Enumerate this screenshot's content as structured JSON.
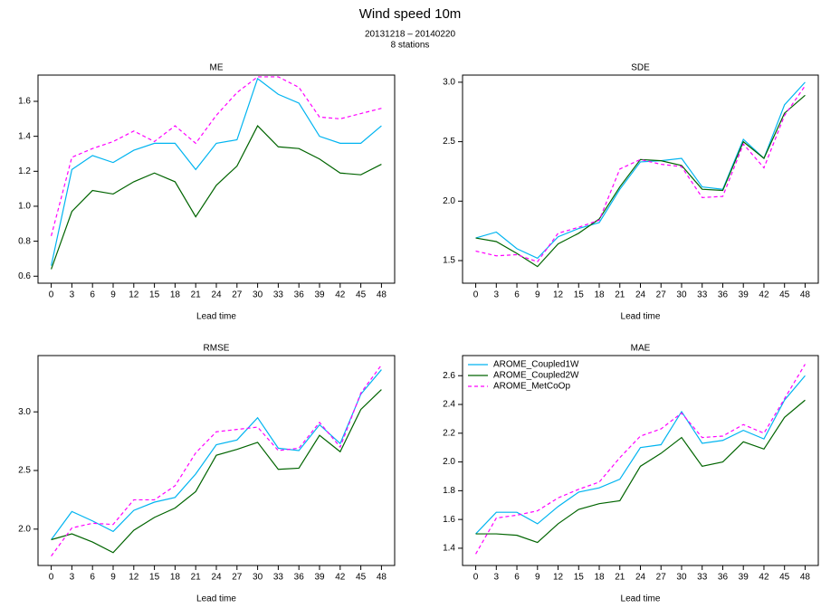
{
  "title": "Wind speed 10m",
  "subtitle": [
    "20131218 – 20140220",
    "8 stations"
  ],
  "chart_data": [
    {
      "type": "line",
      "title": "ME",
      "x_label": "Lead time",
      "x": [
        0,
        3,
        6,
        9,
        12,
        15,
        18,
        21,
        24,
        27,
        30,
        33,
        36,
        39,
        42,
        45,
        48
      ],
      "xlim": [
        -1.92,
        49.92
      ],
      "xticks": [
        0,
        3,
        6,
        9,
        12,
        15,
        18,
        21,
        24,
        27,
        30,
        33,
        36,
        39,
        42,
        45,
        48
      ],
      "ylim": [
        0.56,
        1.75
      ],
      "yticks": [
        0.6,
        0.8,
        {
          "value": 1,
          "label": "1.0"
        },
        1.2,
        1.4,
        1.6
      ],
      "series": [
        {
          "name": "AROME_Coupled1W",
          "color": "#00b4f0",
          "linestyle": "solid",
          "values": [
            0.66,
            1.21,
            1.29,
            1.25,
            1.32,
            1.36,
            1.36,
            1.21,
            1.36,
            1.38,
            1.73,
            1.64,
            1.59,
            1.4,
            1.36,
            1.36,
            1.46
          ]
        },
        {
          "name": "AROME_Coupled2W",
          "color": "#006400",
          "linestyle": "solid",
          "values": [
            0.64,
            0.97,
            1.09,
            1.07,
            1.14,
            1.19,
            1.14,
            0.94,
            1.12,
            1.23,
            1.46,
            1.34,
            1.33,
            1.27,
            1.19,
            1.18,
            1.24
          ]
        },
        {
          "name": "AROME_MetCoOp",
          "color": "#ff00ff",
          "linestyle": "dashed",
          "values": [
            0.83,
            1.28,
            1.33,
            1.37,
            1.43,
            1.37,
            1.46,
            1.36,
            1.52,
            1.65,
            1.74,
            1.74,
            1.68,
            1.51,
            1.5,
            1.53,
            1.56
          ]
        }
      ]
    },
    {
      "type": "line",
      "title": "SDE",
      "x_label": "Lead time",
      "x": [
        0,
        3,
        6,
        9,
        12,
        15,
        18,
        21,
        24,
        27,
        30,
        33,
        36,
        39,
        42,
        45,
        48
      ],
      "xlim": [
        -1.92,
        49.92
      ],
      "xticks": [
        0,
        3,
        6,
        9,
        12,
        15,
        18,
        21,
        24,
        27,
        30,
        33,
        36,
        39,
        42,
        45,
        48
      ],
      "ylim": [
        1.31,
        3.06
      ],
      "yticks": [
        1.5,
        {
          "value": 2,
          "label": "2.0"
        },
        2.5,
        {
          "value": 3,
          "label": "3.0"
        }
      ],
      "series": [
        {
          "name": "AROME_Coupled1W",
          "color": "#00b4f0",
          "linestyle": "solid",
          "values": [
            1.69,
            1.74,
            1.6,
            1.52,
            1.7,
            1.77,
            1.82,
            2.1,
            2.33,
            2.34,
            2.36,
            2.12,
            2.1,
            2.52,
            2.36,
            2.81,
            3.0
          ]
        },
        {
          "name": "AROME_Coupled2W",
          "color": "#006400",
          "linestyle": "solid",
          "values": [
            1.69,
            1.66,
            1.56,
            1.45,
            1.64,
            1.73,
            1.85,
            2.12,
            2.35,
            2.34,
            2.3,
            2.1,
            2.09,
            2.5,
            2.36,
            2.74,
            2.89
          ]
        },
        {
          "name": "AROME_MetCoOp",
          "color": "#ff00ff",
          "linestyle": "dashed",
          "values": [
            1.58,
            1.54,
            1.55,
            1.49,
            1.73,
            1.78,
            1.84,
            2.27,
            2.35,
            2.31,
            2.29,
            2.03,
            2.04,
            2.48,
            2.28,
            2.72,
            2.97
          ]
        }
      ]
    },
    {
      "type": "line",
      "title": "RMSE",
      "x_label": "Lead time",
      "x": [
        0,
        3,
        6,
        9,
        12,
        15,
        18,
        21,
        24,
        27,
        30,
        33,
        36,
        39,
        42,
        45,
        48
      ],
      "xlim": [
        -1.92,
        49.92
      ],
      "xticks": [
        0,
        3,
        6,
        9,
        12,
        15,
        18,
        21,
        24,
        27,
        30,
        33,
        36,
        39,
        42,
        45,
        48
      ],
      "ylim": [
        1.69,
        3.48
      ],
      "yticks": [
        {
          "value": 2,
          "label": "2.0"
        },
        2.5,
        {
          "value": 3,
          "label": "3.0"
        }
      ],
      "series": [
        {
          "name": "AROME_Coupled1W",
          "color": "#00b4f0",
          "linestyle": "solid",
          "values": [
            1.91,
            2.15,
            2.07,
            1.98,
            2.16,
            2.23,
            2.27,
            2.47,
            2.72,
            2.76,
            2.95,
            2.69,
            2.67,
            2.89,
            2.73,
            3.15,
            3.36
          ]
        },
        {
          "name": "AROME_Coupled2W",
          "color": "#006400",
          "linestyle": "solid",
          "values": [
            1.91,
            1.96,
            1.89,
            1.8,
            1.99,
            2.1,
            2.18,
            2.32,
            2.63,
            2.68,
            2.74,
            2.51,
            2.52,
            2.8,
            2.66,
            3.02,
            3.19
          ]
        },
        {
          "name": "AROME_MetCoOp",
          "color": "#ff00ff",
          "linestyle": "dashed",
          "values": [
            1.77,
            2.01,
            2.05,
            2.04,
            2.25,
            2.25,
            2.37,
            2.65,
            2.83,
            2.85,
            2.87,
            2.67,
            2.69,
            2.91,
            2.7,
            3.16,
            3.4
          ]
        }
      ]
    },
    {
      "type": "line",
      "title": "MAE",
      "x_label": "Lead time",
      "legend": "topleft",
      "x": [
        0,
        3,
        6,
        9,
        12,
        15,
        18,
        21,
        24,
        27,
        30,
        33,
        36,
        39,
        42,
        45,
        48
      ],
      "xlim": [
        -1.92,
        49.92
      ],
      "xticks": [
        0,
        3,
        6,
        9,
        12,
        15,
        18,
        21,
        24,
        27,
        30,
        33,
        36,
        39,
        42,
        45,
        48
      ],
      "ylim": [
        1.28,
        2.74
      ],
      "yticks": [
        1.4,
        1.6,
        1.8,
        {
          "value": 2,
          "label": "2.0"
        },
        2.2,
        2.4,
        2.6
      ],
      "series": [
        {
          "name": "AROME_Coupled1W",
          "color": "#00b4f0",
          "linestyle": "solid",
          "values": [
            1.5,
            1.65,
            1.65,
            1.57,
            1.69,
            1.79,
            1.82,
            1.88,
            2.1,
            2.12,
            2.35,
            2.13,
            2.15,
            2.22,
            2.16,
            2.43,
            2.6
          ]
        },
        {
          "name": "AROME_Coupled2W",
          "color": "#006400",
          "linestyle": "solid",
          "values": [
            1.5,
            1.5,
            1.49,
            1.44,
            1.57,
            1.67,
            1.71,
            1.73,
            1.97,
            2.06,
            2.17,
            1.97,
            2.0,
            2.14,
            2.09,
            2.31,
            2.43
          ]
        },
        {
          "name": "AROME_MetCoOp",
          "color": "#ff00ff",
          "linestyle": "dashed",
          "values": [
            1.36,
            1.61,
            1.63,
            1.66,
            1.75,
            1.81,
            1.86,
            2.03,
            2.18,
            2.23,
            2.34,
            2.17,
            2.18,
            2.26,
            2.2,
            2.44,
            2.68
          ]
        }
      ]
    }
  ]
}
